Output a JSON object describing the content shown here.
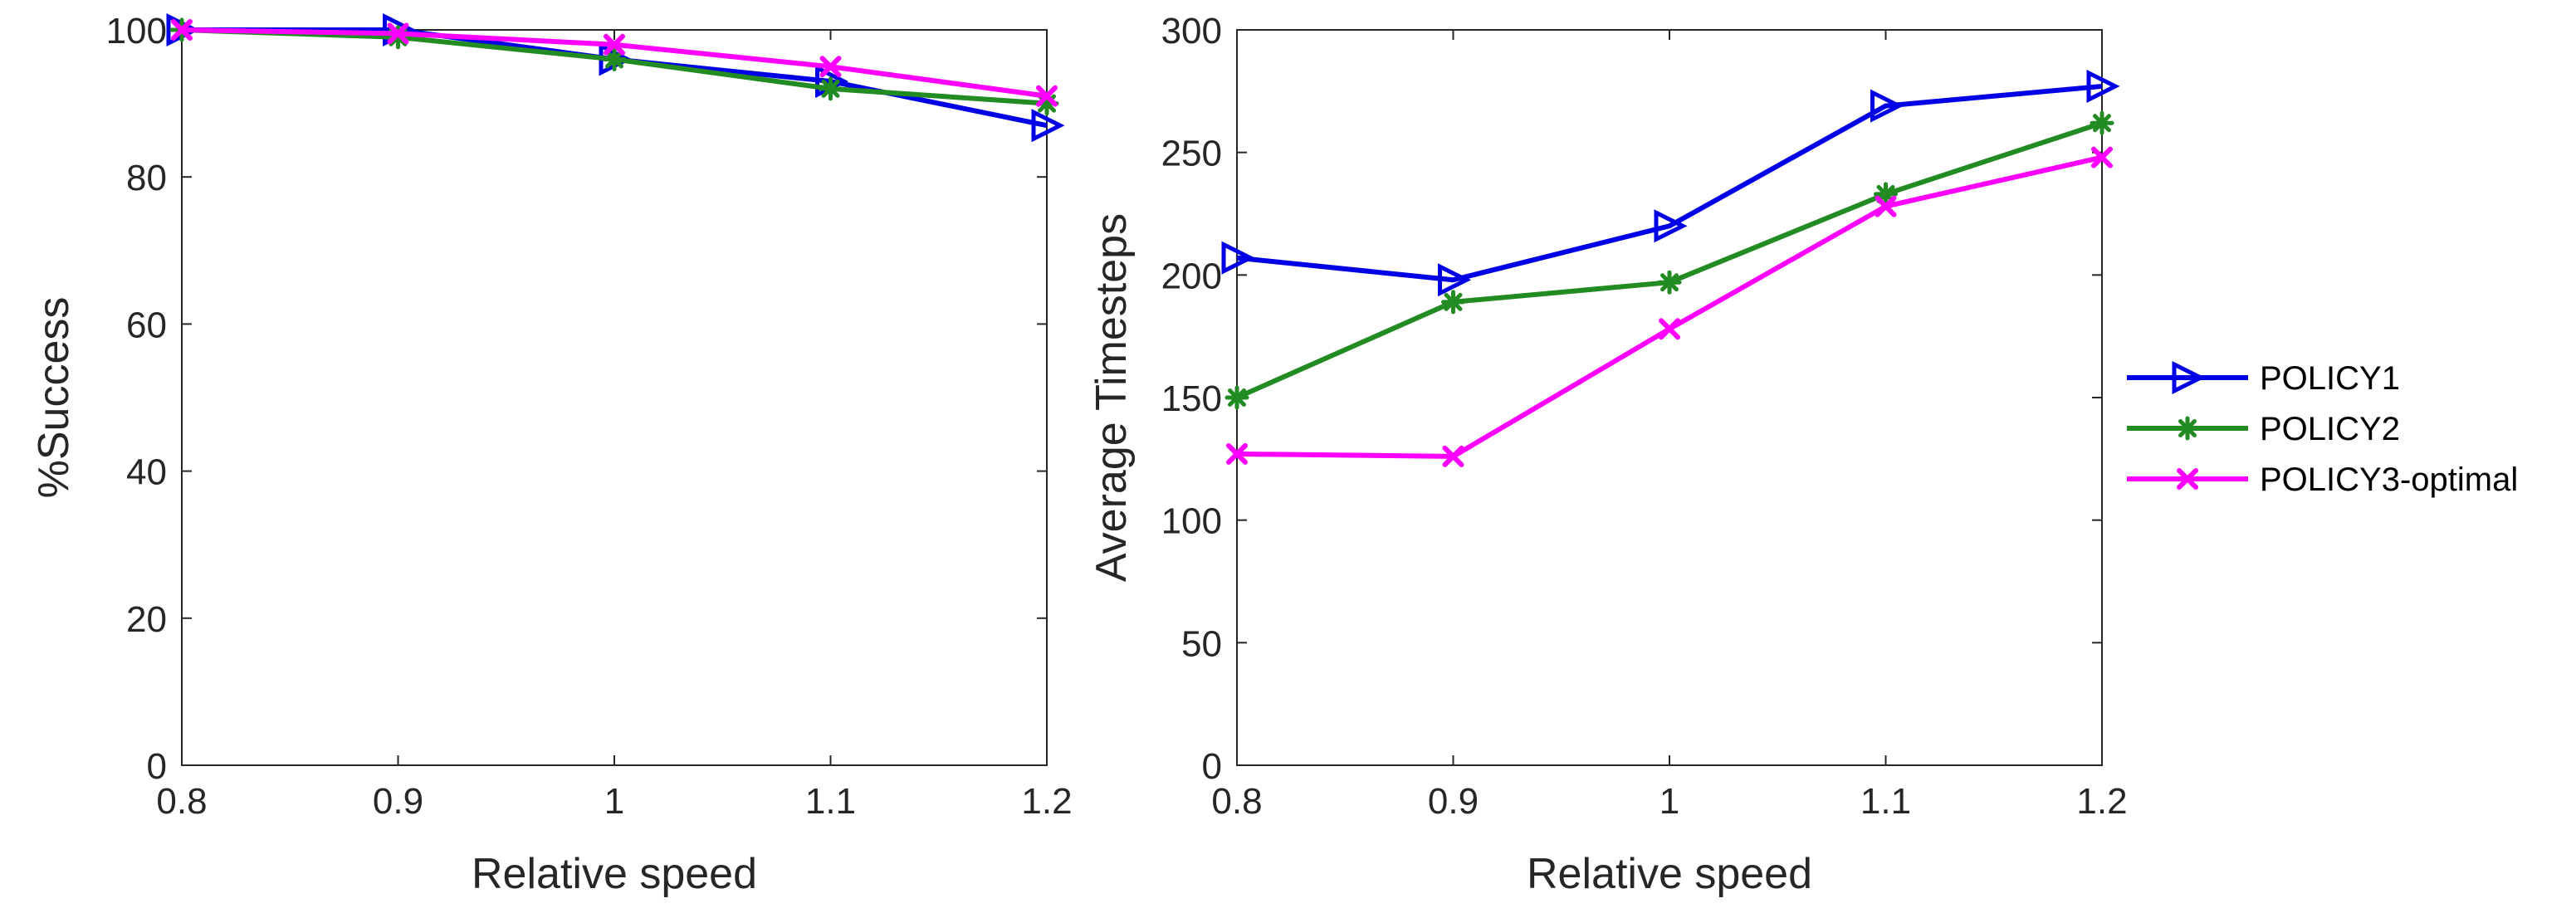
{
  "chart_data": [
    {
      "type": "line",
      "id": "success",
      "title": "",
      "xlabel": "Relative speed",
      "ylabel": "%Success",
      "x": [
        0.8,
        0.9,
        1.0,
        1.1,
        1.2
      ],
      "xticks": [
        "0.8",
        "0.9",
        "1",
        "1.1",
        "1.2"
      ],
      "xlim": [
        0.8,
        1.2
      ],
      "yticks": [
        "0",
        "20",
        "40",
        "60",
        "80",
        "100"
      ],
      "ylim": [
        0,
        100
      ],
      "grid": false,
      "series": [
        {
          "name": "POLICY1",
          "color": "#0000e6",
          "marker": "triangle-right",
          "values": [
            100,
            100,
            96,
            93,
            87
          ]
        },
        {
          "name": "POLICY2",
          "color": "#228b22",
          "marker": "asterisk",
          "values": [
            100,
            99,
            96,
            92,
            90
          ]
        },
        {
          "name": "POLICY3-optimal",
          "color": "#ff00ff",
          "marker": "x",
          "values": [
            100,
            99.5,
            98,
            95,
            91
          ]
        }
      ]
    },
    {
      "type": "line",
      "id": "timesteps",
      "title": "",
      "xlabel": "Relative speed",
      "ylabel": "Average Timesteps",
      "x": [
        0.8,
        0.9,
        1.0,
        1.1,
        1.2
      ],
      "xticks": [
        "0.8",
        "0.9",
        "1",
        "1.1",
        "1.2"
      ],
      "xlim": [
        0.8,
        1.2
      ],
      "yticks": [
        "0",
        "50",
        "100",
        "150",
        "200",
        "250",
        "300"
      ],
      "ylim": [
        0,
        300
      ],
      "grid": false,
      "series": [
        {
          "name": "POLICY1",
          "color": "#0000e6",
          "marker": "triangle-right",
          "values": [
            207,
            198,
            220,
            269,
            277
          ]
        },
        {
          "name": "POLICY2",
          "color": "#228b22",
          "marker": "asterisk",
          "values": [
            150,
            189,
            197,
            233,
            262
          ]
        },
        {
          "name": "POLICY3-optimal",
          "color": "#ff00ff",
          "marker": "x",
          "values": [
            127,
            126,
            178,
            228,
            248
          ]
        }
      ]
    }
  ],
  "legend": {
    "placement": "right",
    "items": [
      {
        "label": "POLICY1",
        "color": "#0000e6",
        "marker": "triangle-right"
      },
      {
        "label": "POLICY2",
        "color": "#228b22",
        "marker": "asterisk"
      },
      {
        "label": "POLICY3-optimal",
        "color": "#ff00ff",
        "marker": "x"
      }
    ]
  }
}
